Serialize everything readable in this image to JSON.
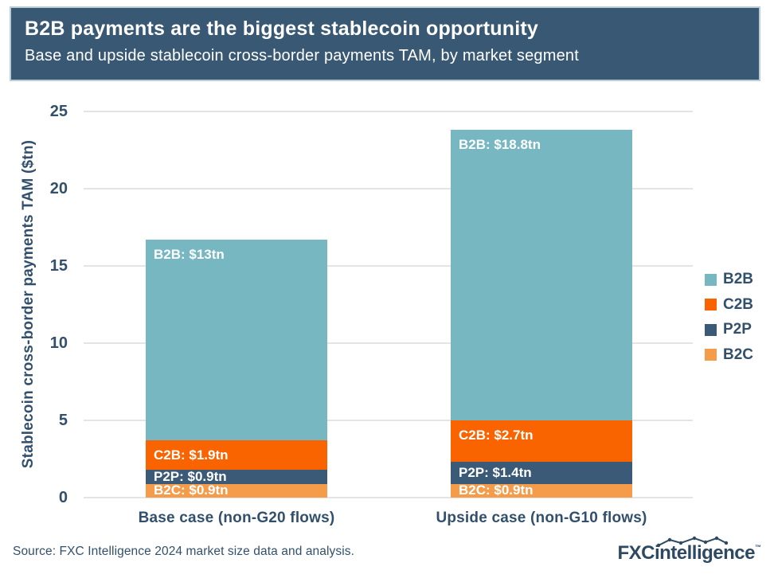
{
  "header": {
    "title": "B2B payments are the biggest stablecoin opportunity",
    "subtitle": "Base and upside stablecoin cross-border payments TAM, by market segment"
  },
  "chart_data": {
    "type": "bar",
    "stacked": true,
    "title": "B2B payments are the biggest stablecoin opportunity",
    "subtitle": "Base and upside stablecoin cross-border payments TAM, by market segment",
    "categories": [
      "Base case (non-G20 flows)",
      "Upside case (non-G10 flows)"
    ],
    "series": [
      {
        "name": "B2C",
        "color": "#F49C4A",
        "values": [
          0.9,
          0.9
        ],
        "bar_labels": [
          "B2C: $0.9tn",
          "B2C: $0.9tn"
        ]
      },
      {
        "name": "P2P",
        "color": "#3B5A77",
        "values": [
          0.9,
          1.4
        ],
        "bar_labels": [
          "P2P: $0.9tn",
          "P2P: $1.4tn"
        ]
      },
      {
        "name": "C2B",
        "color": "#FA6400",
        "values": [
          1.9,
          2.7
        ],
        "bar_labels": [
          "C2B: $1.9tn",
          "C2B: $2.7tn"
        ]
      },
      {
        "name": "B2B",
        "color": "#76B7C2",
        "values": [
          13,
          18.8
        ],
        "bar_labels": [
          "B2B: $13tn",
          "B2B: $18.8tn"
        ]
      }
    ],
    "legend_order": [
      "B2B",
      "C2B",
      "P2P",
      "B2C"
    ],
    "legend_position": "right",
    "xlabel": "",
    "ylabel": "Stablecoin cross-border payments TAM ($tn)",
    "yticks": [
      0,
      5,
      10,
      15,
      20,
      25
    ],
    "ylim": [
      0,
      25
    ],
    "grid": "horizontal"
  },
  "footer": {
    "source": "Source: FXC Intelligence 2024 market size data and analysis.",
    "logo": {
      "fxc": "FXC",
      "rest": "intelligence",
      "tm": "™"
    }
  },
  "colors": {
    "header_bg": "#395873",
    "text_navy": "#32506C",
    "gridline": "#E4E4E4",
    "bar_label_text": "#FFFFFF"
  }
}
